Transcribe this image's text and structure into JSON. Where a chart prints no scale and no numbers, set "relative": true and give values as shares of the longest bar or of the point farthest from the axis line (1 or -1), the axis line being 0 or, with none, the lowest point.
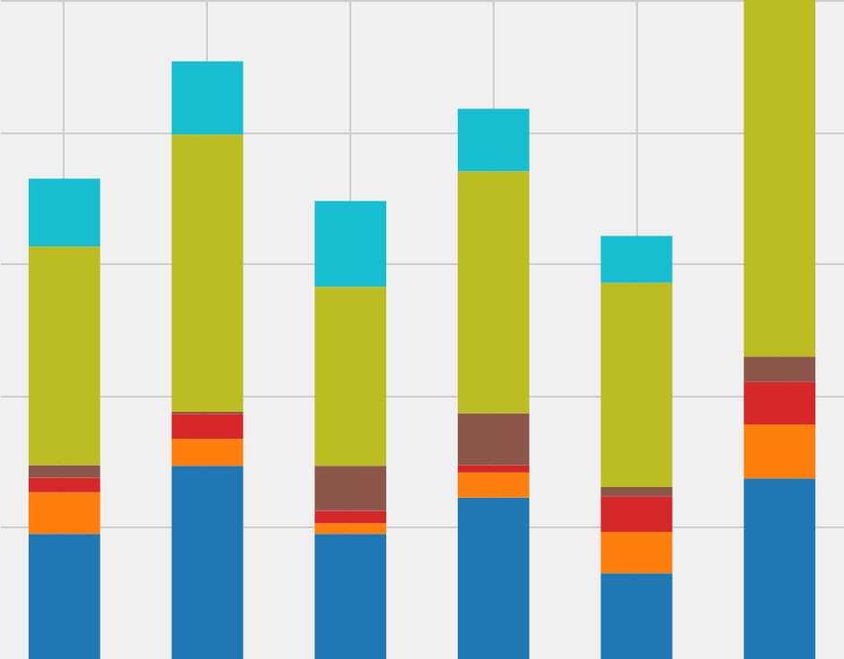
{
  "chart_data": {
    "type": "bar",
    "stacked": true,
    "relative": true,
    "grid": true,
    "categories": [
      null,
      null,
      null,
      null,
      null,
      null
    ],
    "series": [
      {
        "color": "#1f77b4",
        "values": [
          0.19,
          0.293,
          0.19,
          0.245,
          0.13,
          0.274
        ]
      },
      {
        "color": "#ff7f0e",
        "values": [
          0.063,
          0.041,
          0.016,
          0.038,
          0.063,
          0.082
        ]
      },
      {
        "color": "#d62728",
        "values": [
          0.022,
          0.038,
          0.019,
          0.011,
          0.054,
          0.065
        ]
      },
      {
        "color": "#8c564b",
        "values": [
          0.019,
          0.003,
          0.068,
          0.079,
          0.014,
          0.038
        ]
      },
      {
        "color": "#bcbd22",
        "values": [
          0.332,
          0.421,
          0.272,
          0.367,
          0.31,
          0.541
        ]
      },
      {
        "color": "#17becf",
        "values": [
          0.103,
          0.111,
          0.13,
          0.095,
          0.071,
          0
        ]
      }
    ]
  }
}
